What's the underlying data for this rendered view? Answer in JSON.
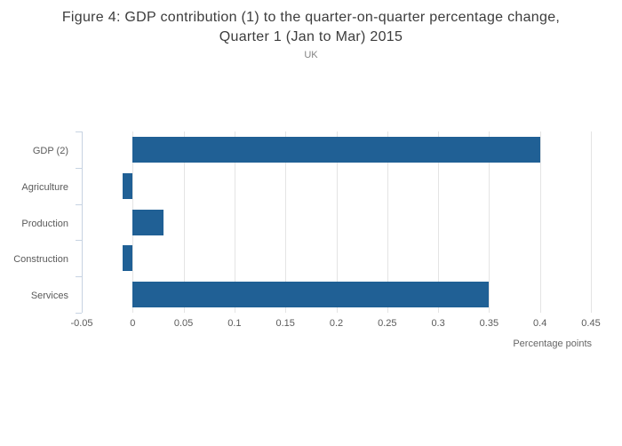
{
  "chart_data": {
    "type": "bar",
    "orientation": "horizontal",
    "title_lines": [
      "Figure 4: GDP contribution (1) to the quarter-on-quarter percentage change,",
      "Quarter 1 (Jan to Mar) 2015"
    ],
    "subtitle": "UK",
    "categories": [
      "GDP (2)",
      "Agriculture",
      "Production",
      "Construction",
      "Services"
    ],
    "values": [
      0.4,
      -0.01,
      0.03,
      -0.01,
      0.35
    ],
    "xlabel": "Percentage points",
    "xlim": [
      -0.05,
      0.45
    ],
    "xticks": [
      -0.05,
      0,
      0.05,
      0.1,
      0.15,
      0.2,
      0.25,
      0.3,
      0.35,
      0.4,
      0.45
    ],
    "xtick_labels": [
      "-0.05",
      "0",
      "0.05",
      "0.1",
      "0.15",
      "0.2",
      "0.25",
      "0.3",
      "0.35",
      "0.4",
      "0.45"
    ],
    "grid": true,
    "legend": false,
    "colors": {
      "bar": "#206095",
      "axis": "#c7d3e2",
      "gridline": "#e4e4e4",
      "title": "#3c3c3c",
      "labels": "#5a5a5a"
    }
  }
}
